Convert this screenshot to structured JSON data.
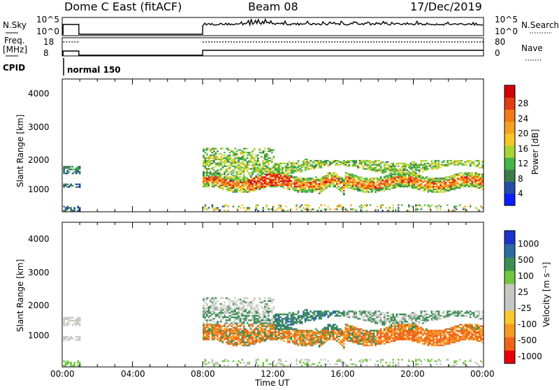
{
  "header": {
    "station": "Dome C East (fitACF)",
    "beam": "Beam 08",
    "date": "17/Dec/2019"
  },
  "status": {
    "nsky_label": "N.Sky",
    "nsky_ticks": [
      "10^5",
      "10^0"
    ],
    "nsearch_label": "N.Search",
    "freq_label": "Freq.",
    "freq_unit": "[MHz]",
    "freq_ticks": [
      "18",
      "8"
    ],
    "nave_ticks": [
      "80",
      "0"
    ],
    "nave_label": "Nave",
    "cpid_label": "CPID",
    "cpid_value": "normal 150"
  },
  "colors": {
    "power_scale": [
      "#0a1eff",
      "#234da6",
      "#3a7d4a",
      "#43b548",
      "#a9d534",
      "#f7c628",
      "#f4a020",
      "#f07a18",
      "#e13c12",
      "#d4000a"
    ],
    "velocity_scale": [
      "#e8000b",
      "#f0641a",
      "#f59b22",
      "#f9c82f",
      "#c5c5c5",
      "#c9c9c4",
      "#72c640",
      "#3d8f53",
      "#2e6aa3",
      "#1a33c9"
    ]
  },
  "chart_data": [
    {
      "type": "heatmap",
      "name": "power",
      "xlabel": "",
      "ylabel": "Slant Range [km]",
      "ylim": [
        200,
        4600
      ],
      "yticks": [
        "1000",
        "2000",
        "3000",
        "4000"
      ],
      "colorbar_label": "Power [dB]",
      "colorbar_ticks": [
        "4",
        "8",
        "12",
        "16",
        "20",
        "24",
        "28"
      ],
      "colorbar_range": [
        0,
        32
      ],
      "segments": [
        {
          "x": [
            0.0,
            1.0
          ],
          "band_km": [
            950,
            1700
          ],
          "note_values_db": "4-12"
        },
        {
          "x": [
            8.0,
            24.0
          ],
          "band_km": [
            800,
            2300
          ],
          "peak_db": 30
        }
      ]
    },
    {
      "type": "heatmap",
      "name": "velocity",
      "xlabel": "Time UT",
      "ylabel": "Slant Range [km]",
      "ylim": [
        200,
        4600
      ],
      "yticks": [
        "1000",
        "2000",
        "3000",
        "4000"
      ],
      "xticks": [
        "00:00",
        "04:00",
        "08:00",
        "12:00",
        "16:00",
        "20:00",
        "00:00"
      ],
      "xlim": [
        0,
        24
      ],
      "colorbar_label": "Velocity [m s⁻¹]",
      "colorbar_ticks": [
        "1000",
        "500",
        "100",
        "25",
        "-25",
        "-100",
        "-500",
        "-1000"
      ]
    }
  ]
}
